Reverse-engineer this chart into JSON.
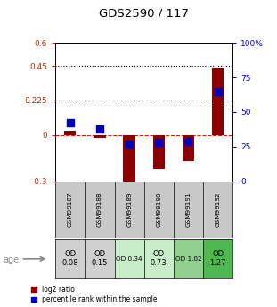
{
  "title": "GDS2590 / 117",
  "samples": [
    "GSM99187",
    "GSM99188",
    "GSM99189",
    "GSM99190",
    "GSM99191",
    "GSM99192"
  ],
  "log2_ratio": [
    0.03,
    -0.02,
    -0.32,
    -0.22,
    -0.17,
    0.44
  ],
  "percentile_rank": [
    42,
    38,
    27,
    28,
    29,
    65
  ],
  "age_labels": [
    [
      "OD",
      "0.08"
    ],
    [
      "OD",
      "0.15"
    ],
    [
      "OD 0.34"
    ],
    [
      "OD",
      "0.73"
    ],
    [
      "OD 1.02"
    ],
    [
      "OD",
      "1.27"
    ]
  ],
  "age_colors": [
    "#d0d0d0",
    "#d0d0d0",
    "#c8edc8",
    "#c8edc8",
    "#90d090",
    "#50b850"
  ],
  "age_small": [
    false,
    false,
    true,
    false,
    true,
    false
  ],
  "bar_color": "#8b0000",
  "dot_color": "#0000bb",
  "ylim_left": [
    -0.3,
    0.6
  ],
  "ylim_right": [
    0,
    100
  ],
  "yticks_left": [
    -0.3,
    0.0,
    0.225,
    0.45,
    0.6
  ],
  "yticks_right": [
    0,
    25,
    50,
    75,
    100
  ],
  "ytick_labels_left": [
    "-0.3",
    "0",
    "0.225",
    "0.45",
    "0.6"
  ],
  "ytick_labels_right": [
    "0",
    "25",
    "50",
    "75",
    "100%"
  ],
  "hlines": [
    0.225,
    0.45
  ],
  "bg_color": "#ffffff",
  "left_tick_color": "#cc2200",
  "right_tick_color": "#0000cc",
  "sample_box_color": "#c8c8c8"
}
